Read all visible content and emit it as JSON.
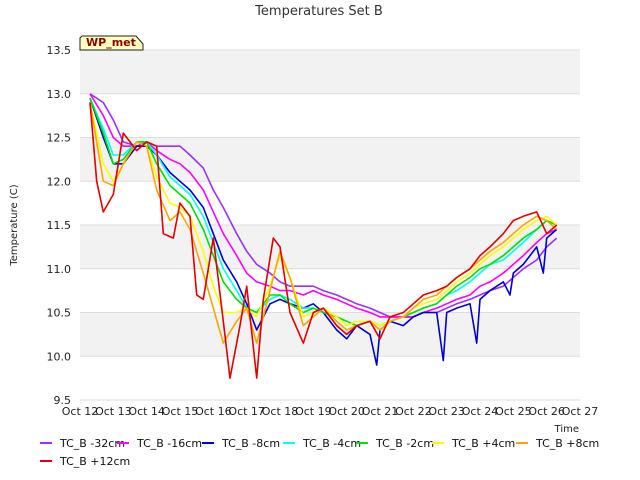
{
  "chart_data": {
    "type": "line",
    "title": "Temperatures Set B",
    "xlabel": "Time",
    "ylabel": "Temperature (C)",
    "badge": "WP_met",
    "ylim": [
      9.5,
      13.5
    ],
    "xlim": [
      12,
      27
    ],
    "y_ticks": [
      "9.5",
      "10.0",
      "10.5",
      "11.0",
      "11.5",
      "12.0",
      "12.5",
      "13.0",
      "13.5"
    ],
    "x_ticks": [
      "Oct 12",
      "Oct 13",
      "Oct 14",
      "Oct 15",
      "Oct 16",
      "Oct 17",
      "Oct 18",
      "Oct 19",
      "Oct 20",
      "Oct 21",
      "Oct 22",
      "Oct 23",
      "Oct 24",
      "Oct 25",
      "Oct 26",
      "Oct 27"
    ],
    "grid": true,
    "legend_position": "bottom",
    "series": [
      {
        "name": "TC_B -32cm",
        "color": "#9b30ff",
        "x": [
          12.3,
          12.7,
          13.0,
          13.3,
          13.7,
          14.0,
          14.3,
          14.7,
          15.0,
          15.3,
          15.7,
          16.0,
          16.3,
          16.7,
          17.0,
          17.3,
          17.7,
          18.0,
          18.3,
          18.7,
          19.0,
          19.3,
          19.7,
          20.0,
          20.3,
          20.7,
          21.0,
          21.3,
          21.7,
          22.0,
          22.3,
          22.7,
          23.0,
          23.3,
          23.7,
          24.0,
          24.3,
          24.7,
          25.0,
          25.3,
          25.7,
          26.0,
          26.3
        ],
        "y": [
          13.0,
          12.9,
          12.7,
          12.45,
          12.4,
          12.45,
          12.4,
          12.4,
          12.4,
          12.3,
          12.15,
          11.9,
          11.7,
          11.4,
          11.2,
          11.05,
          10.95,
          10.85,
          10.8,
          10.8,
          10.8,
          10.75,
          10.7,
          10.65,
          10.6,
          10.55,
          10.5,
          10.45,
          10.45,
          10.45,
          10.5,
          10.5,
          10.55,
          10.6,
          10.65,
          10.7,
          10.75,
          10.8,
          10.9,
          11.0,
          11.1,
          11.25,
          11.35
        ]
      },
      {
        "name": "TC_B -16cm",
        "color": "#ff00ff",
        "x": [
          12.3,
          12.7,
          13.0,
          13.3,
          13.7,
          14.0,
          14.3,
          14.7,
          15.0,
          15.3,
          15.7,
          16.0,
          16.3,
          16.7,
          17.0,
          17.3,
          17.7,
          18.0,
          18.3,
          18.7,
          19.0,
          19.3,
          19.7,
          20.0,
          20.3,
          20.7,
          21.0,
          21.3,
          21.7,
          22.0,
          22.3,
          22.7,
          23.0,
          23.3,
          23.7,
          24.0,
          24.3,
          24.7,
          25.0,
          25.3,
          25.7,
          26.0,
          26.3
        ],
        "y": [
          13.0,
          12.75,
          12.5,
          12.4,
          12.4,
          12.45,
          12.35,
          12.25,
          12.2,
          12.1,
          11.9,
          11.65,
          11.4,
          11.15,
          10.95,
          10.85,
          10.8,
          10.75,
          10.75,
          10.7,
          10.75,
          10.7,
          10.65,
          10.6,
          10.55,
          10.5,
          10.45,
          10.45,
          10.45,
          10.45,
          10.5,
          10.55,
          10.6,
          10.65,
          10.7,
          10.8,
          10.85,
          10.95,
          11.05,
          11.15,
          11.3,
          11.4,
          11.45
        ]
      },
      {
        "name": "TC_B -8cm",
        "color": "#0000cd",
        "x": [
          12.3,
          12.7,
          13.0,
          13.3,
          13.7,
          14.0,
          14.3,
          14.7,
          15.0,
          15.3,
          15.7,
          16.0,
          16.3,
          16.7,
          17.0,
          17.3,
          17.7,
          18.0,
          18.3,
          18.7,
          19.0,
          19.3,
          19.7,
          20.0,
          20.3,
          20.7,
          20.9,
          21.0,
          21.3,
          21.7,
          22.0,
          22.3,
          22.7,
          22.9,
          23.0,
          23.3,
          23.7,
          23.9,
          24.0,
          24.3,
          24.7,
          24.9,
          25.0,
          25.3,
          25.7,
          25.9,
          26.0,
          26.3
        ],
        "y": [
          12.95,
          12.5,
          12.2,
          12.2,
          12.4,
          12.4,
          12.3,
          12.1,
          12.0,
          11.9,
          11.7,
          11.4,
          11.1,
          10.85,
          10.6,
          10.3,
          10.6,
          10.65,
          10.6,
          10.55,
          10.6,
          10.5,
          10.3,
          10.2,
          10.35,
          10.25,
          9.9,
          10.3,
          10.4,
          10.35,
          10.45,
          10.5,
          10.5,
          9.95,
          10.5,
          10.55,
          10.6,
          10.15,
          10.65,
          10.75,
          10.85,
          10.7,
          10.95,
          11.05,
          11.25,
          10.95,
          11.35,
          11.45
        ]
      },
      {
        "name": "TC_B -4cm",
        "color": "#00ffff",
        "x": [
          12.3,
          12.7,
          13.0,
          13.3,
          13.7,
          14.0,
          14.3,
          14.7,
          15.0,
          15.3,
          15.7,
          16.0,
          16.3,
          16.7,
          17.0,
          17.3,
          17.7,
          18.0,
          18.3,
          18.7,
          19.0,
          19.3,
          19.7,
          20.0,
          20.3,
          20.7,
          21.0,
          21.3,
          21.7,
          22.0,
          22.3,
          22.7,
          23.0,
          23.3,
          23.7,
          24.0,
          24.3,
          24.7,
          25.0,
          25.3,
          25.7,
          26.0,
          26.3
        ],
        "y": [
          12.95,
          12.6,
          12.3,
          12.3,
          12.45,
          12.45,
          12.3,
          12.05,
          11.95,
          11.85,
          11.6,
          11.3,
          11.0,
          10.75,
          10.55,
          10.5,
          10.65,
          10.7,
          10.65,
          10.55,
          10.55,
          10.5,
          10.45,
          10.4,
          10.35,
          10.4,
          10.35,
          10.4,
          10.45,
          10.5,
          10.55,
          10.6,
          10.7,
          10.75,
          10.85,
          10.95,
          11.05,
          11.1,
          11.2,
          11.3,
          11.45,
          11.55,
          11.5
        ]
      },
      {
        "name": "TC_B -2cm",
        "color": "#00e000",
        "x": [
          12.3,
          12.7,
          13.0,
          13.3,
          13.7,
          14.0,
          14.3,
          14.7,
          15.0,
          15.3,
          15.7,
          16.0,
          16.3,
          16.7,
          17.0,
          17.3,
          17.7,
          18.0,
          18.3,
          18.7,
          19.0,
          19.3,
          19.7,
          20.0,
          20.3,
          20.7,
          21.0,
          21.3,
          21.7,
          22.0,
          22.3,
          22.7,
          23.0,
          23.3,
          23.7,
          24.0,
          24.3,
          24.7,
          25.0,
          25.3,
          25.7,
          26.0,
          26.3
        ],
        "y": [
          12.95,
          12.55,
          12.2,
          12.25,
          12.45,
          12.45,
          12.2,
          11.95,
          11.85,
          11.75,
          11.45,
          11.15,
          10.85,
          10.65,
          10.55,
          10.5,
          10.7,
          10.7,
          10.6,
          10.5,
          10.55,
          10.5,
          10.45,
          10.4,
          10.35,
          10.4,
          10.35,
          10.4,
          10.45,
          10.5,
          10.55,
          10.6,
          10.7,
          10.8,
          10.9,
          11.0,
          11.05,
          11.15,
          11.25,
          11.35,
          11.45,
          11.55,
          11.5
        ]
      },
      {
        "name": "TC_B +4cm",
        "color": "#ffff00",
        "x": [
          12.3,
          12.7,
          13.0,
          13.3,
          13.7,
          14.0,
          14.3,
          14.7,
          15.0,
          15.3,
          15.7,
          16.0,
          16.3,
          16.7,
          17.0,
          17.3,
          17.7,
          18.0,
          18.3,
          18.7,
          19.0,
          19.3,
          19.7,
          20.0,
          20.3,
          20.7,
          21.0,
          21.3,
          21.7,
          22.0,
          22.3,
          22.7,
          23.0,
          23.3,
          23.7,
          24.0,
          24.3,
          24.7,
          25.0,
          25.3,
          25.7,
          26.0,
          26.3
        ],
        "y": [
          12.9,
          12.2,
          12.0,
          12.2,
          12.45,
          12.4,
          12.05,
          11.75,
          11.7,
          11.6,
          11.2,
          10.8,
          10.5,
          10.5,
          10.55,
          10.45,
          10.8,
          11.15,
          10.9,
          10.45,
          10.5,
          10.55,
          10.45,
          10.35,
          10.4,
          10.4,
          10.35,
          10.4,
          10.45,
          10.55,
          10.6,
          10.65,
          10.75,
          10.85,
          10.95,
          11.05,
          11.15,
          11.25,
          11.35,
          11.45,
          11.55,
          11.6,
          11.5
        ]
      },
      {
        "name": "TC_B +8cm",
        "color": "#ffa500",
        "x": [
          12.3,
          12.7,
          13.0,
          13.3,
          13.7,
          14.0,
          14.3,
          14.7,
          15.0,
          15.3,
          15.7,
          16.0,
          16.3,
          16.7,
          17.0,
          17.3,
          17.7,
          18.0,
          18.3,
          18.7,
          19.0,
          19.3,
          19.7,
          20.0,
          20.3,
          20.7,
          21.0,
          21.3,
          21.7,
          22.0,
          22.3,
          22.7,
          23.0,
          23.3,
          23.7,
          24.0,
          24.3,
          24.7,
          25.0,
          25.3,
          25.7,
          26.0,
          26.3
        ],
        "y": [
          12.9,
          12.0,
          11.95,
          12.2,
          12.45,
          12.4,
          11.9,
          11.55,
          11.65,
          11.45,
          10.95,
          10.55,
          10.15,
          10.4,
          10.55,
          10.15,
          10.75,
          11.2,
          10.9,
          10.35,
          10.45,
          10.55,
          10.4,
          10.3,
          10.35,
          10.4,
          10.3,
          10.4,
          10.45,
          10.55,
          10.65,
          10.7,
          10.8,
          10.9,
          11.0,
          11.1,
          11.2,
          11.3,
          11.4,
          11.5,
          11.6,
          11.55,
          11.45
        ]
      },
      {
        "name": "TC_B +12cm",
        "color": "#e00000",
        "x": [
          12.3,
          12.5,
          12.7,
          13.0,
          13.3,
          13.7,
          14.0,
          14.3,
          14.5,
          14.8,
          15.0,
          15.3,
          15.5,
          15.7,
          16.0,
          16.3,
          16.5,
          16.8,
          17.0,
          17.3,
          17.5,
          17.8,
          18.0,
          18.3,
          18.7,
          19.0,
          19.3,
          19.7,
          20.0,
          20.3,
          20.7,
          21.0,
          21.3,
          21.7,
          22.0,
          22.3,
          22.7,
          23.0,
          23.3,
          23.7,
          24.0,
          24.3,
          24.7,
          25.0,
          25.3,
          25.7,
          26.0,
          26.3
        ],
        "y": [
          12.9,
          12.0,
          11.65,
          11.85,
          12.55,
          12.35,
          12.45,
          12.4,
          11.4,
          11.35,
          11.75,
          11.6,
          10.7,
          10.65,
          11.35,
          10.4,
          9.75,
          10.35,
          10.8,
          9.75,
          10.65,
          11.35,
          11.25,
          10.5,
          10.15,
          10.5,
          10.55,
          10.35,
          10.25,
          10.35,
          10.4,
          10.2,
          10.45,
          10.5,
          10.6,
          10.7,
          10.75,
          10.8,
          10.9,
          11.0,
          11.15,
          11.25,
          11.4,
          11.55,
          11.6,
          11.65,
          11.4,
          11.5
        ]
      }
    ]
  }
}
